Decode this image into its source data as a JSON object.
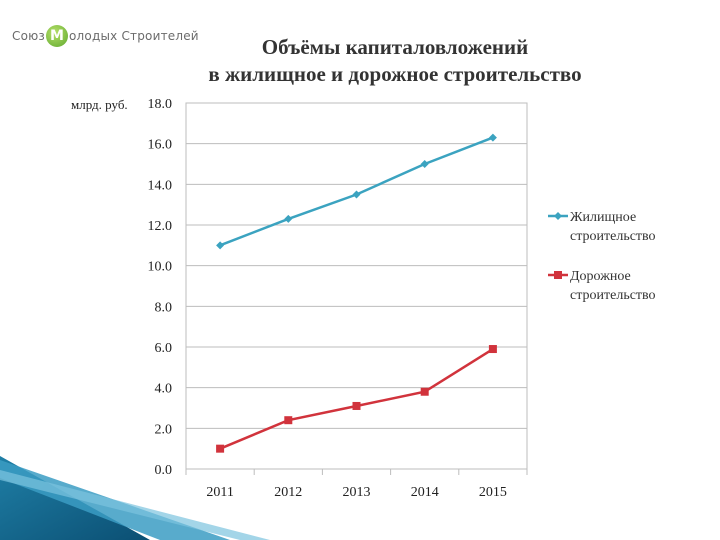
{
  "logo": {
    "text_left": "Союз",
    "text_circle": "М",
    "text_right": "олодых Строителей"
  },
  "chart_data": {
    "type": "line",
    "title": [
      "Объёмы капиталовложений",
      "в жилищное и дорожное строительство"
    ],
    "ylabel": "млрд. руб.",
    "xlabel": "",
    "categories": [
      "2011",
      "2012",
      "2013",
      "2014",
      "2015"
    ],
    "ylim": [
      0,
      18
    ],
    "yticks": [
      "0.0",
      "2.0",
      "4.0",
      "6.0",
      "8.0",
      "10.0",
      "12.0",
      "14.0",
      "16.0",
      "18.0"
    ],
    "grid": true,
    "legend_position": "right",
    "series": [
      {
        "name": [
          "Жилищное",
          "строительство"
        ],
        "values": [
          11.0,
          12.3,
          13.5,
          15.0,
          16.3
        ],
        "color": "#3BA3C0",
        "marker": "diamond"
      },
      {
        "name": [
          "Дорожное",
          "строительство"
        ],
        "values": [
          1.0,
          2.4,
          3.1,
          3.8,
          5.9
        ],
        "color": "#D1333C",
        "marker": "square"
      }
    ]
  }
}
